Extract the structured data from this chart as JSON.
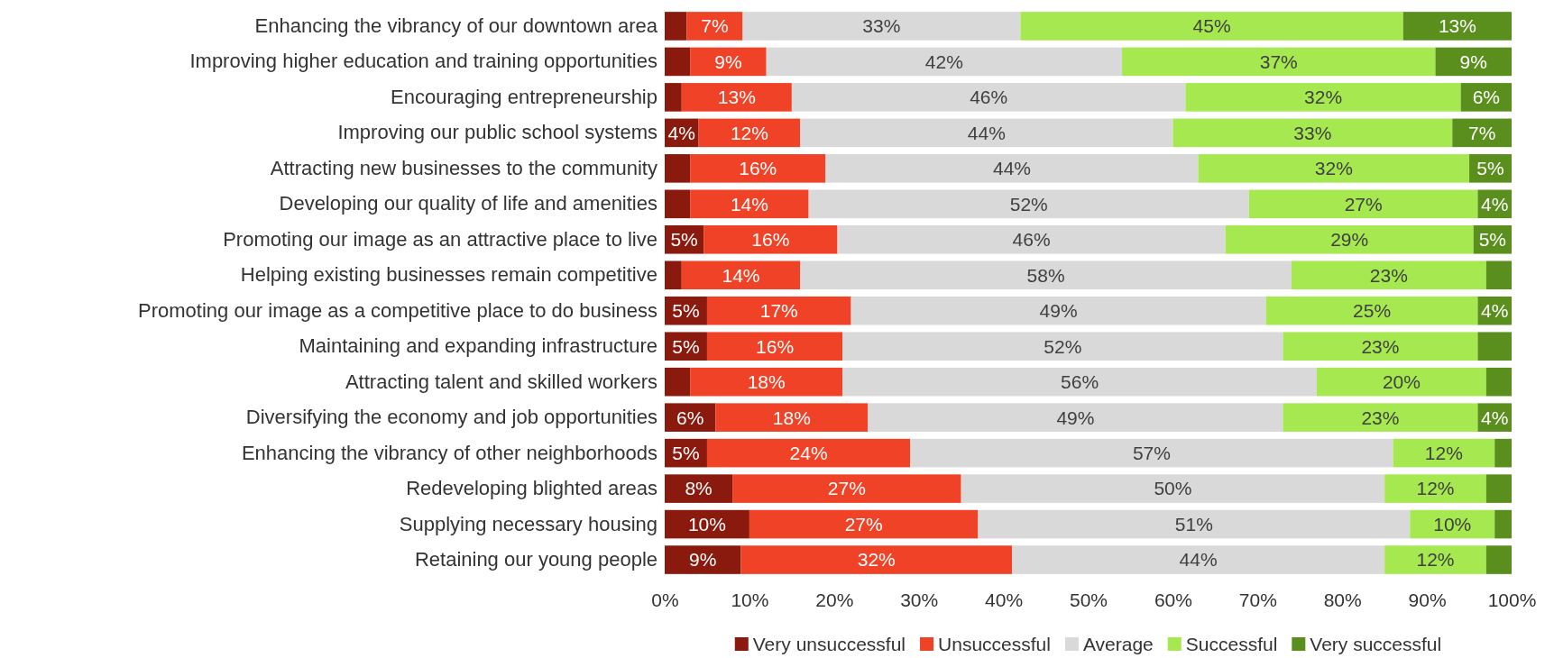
{
  "chart_data": {
    "type": "bar",
    "orientation": "horizontal",
    "stacked": true,
    "legend": "bottom",
    "grid": false,
    "categories": [
      "Enhancing the vibrancy of our downtown area",
      "Improving higher education and training opportunities",
      "Encouraging entrepreneurship",
      "Improving our public school systems",
      "Attracting new businesses to the community",
      "Developing our quality of life and amenities",
      "Promoting our image as an attractive place to live",
      "Helping existing businesses remain competitive",
      "Promoting our image as a competitive place to do business",
      "Maintaining and expanding infrastructure",
      "Attracting talent and skilled workers",
      "Diversifying the economy and job opportunities",
      "Enhancing the vibrancy of other neighborhoods",
      "Redeveloping blighted areas",
      "Supplying necessary housing",
      "Retaining our young people"
    ],
    "xlim": [
      0,
      100
    ],
    "xticks": [
      {
        "value": 0,
        "label": "0%"
      },
      {
        "value": 10,
        "label": "10%"
      },
      {
        "value": 20,
        "label": "20%"
      },
      {
        "value": 30,
        "label": "30%"
      },
      {
        "value": 40,
        "label": "40%"
      },
      {
        "value": 50,
        "label": "50%"
      },
      {
        "value": 60,
        "label": "60%"
      },
      {
        "value": 70,
        "label": "70%"
      },
      {
        "value": 80,
        "label": "80%"
      },
      {
        "value": 90,
        "label": "90%"
      },
      {
        "value": 100,
        "label": "100%"
      }
    ],
    "series": [
      {
        "name": "Very unsuccessful",
        "color": "#8b1a0e",
        "values": [
          2.6,
          3,
          2,
          4,
          3,
          3,
          4.6,
          2,
          5,
          5,
          3,
          6,
          5,
          8,
          10,
          9
        ],
        "value_labels": [
          null,
          null,
          null,
          "4%",
          null,
          null,
          "5%",
          null,
          "5%",
          "5%",
          null,
          "6%",
          "5%",
          "8%",
          "10%",
          "9%"
        ]
      },
      {
        "name": "Unsuccessful",
        "color": "#f04226",
        "values": [
          6.6,
          9,
          13,
          12,
          16,
          14,
          15.8,
          14,
          17,
          16,
          18,
          18,
          24,
          27,
          27,
          32
        ],
        "value_labels": [
          "7%",
          "9%",
          "13%",
          "12%",
          "16%",
          "14%",
          "16%",
          "14%",
          "17%",
          "16%",
          "18%",
          "18%",
          "24%",
          "27%",
          "27%",
          "32%"
        ]
      },
      {
        "name": "Average",
        "color": "#d9d9d9",
        "values": [
          32.8,
          42,
          46.5,
          44,
          44,
          52,
          45.8,
          58,
          49,
          52,
          56,
          49,
          57,
          50,
          51,
          44
        ],
        "value_labels": [
          "33%",
          "42%",
          "46%",
          "44%",
          "44%",
          "52%",
          "46%",
          "58%",
          "49%",
          "52%",
          "56%",
          "49%",
          "57%",
          "50%",
          "51%",
          "44%"
        ]
      },
      {
        "name": "Successful",
        "color": "#a6e850",
        "values": [
          45.2,
          37,
          32.5,
          33,
          32,
          27,
          29.3,
          23,
          25,
          23,
          20,
          23,
          12,
          12,
          10,
          12
        ],
        "value_labels": [
          "45%",
          "37%",
          "32%",
          "33%",
          "32%",
          "27%",
          "29%",
          "23%",
          "25%",
          "23%",
          "20%",
          "23%",
          "12%",
          "12%",
          "10%",
          "12%"
        ]
      },
      {
        "name": "Very successful",
        "color": "#5a8f1d",
        "values": [
          12.8,
          9,
          6,
          7,
          5,
          4,
          4.5,
          3,
          4,
          4,
          3,
          4,
          2,
          3,
          2,
          3
        ],
        "value_labels": [
          "13%",
          "9%",
          "6%",
          "7%",
          "5%",
          "4%",
          "5%",
          null,
          "4%",
          null,
          null,
          "4%",
          null,
          null,
          null,
          null
        ]
      }
    ]
  }
}
